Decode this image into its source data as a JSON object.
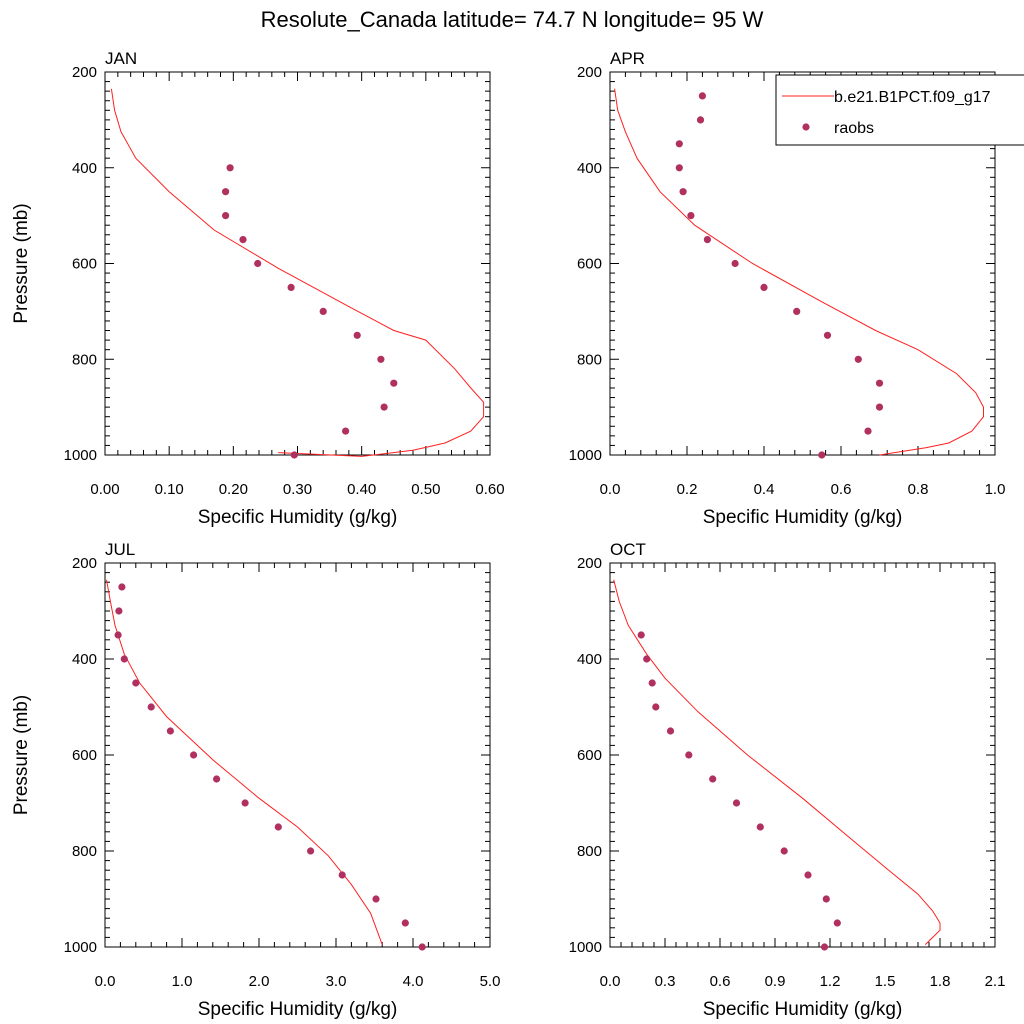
{
  "title": "Resolute_Canada  latitude= 74.7 N longitude= 95 W",
  "legend": {
    "model_label": "b.e21.B1PCT.f09_g17",
    "obs_label": "raobs"
  },
  "colors": {
    "model": "#ff2020",
    "obs": "#b03060"
  },
  "chart_data": [
    {
      "type": "line+scatter",
      "panel": "JAN",
      "xlabel": "Specific Humidity (g/kg)",
      "ylabel": "Pressure (mb)",
      "xlim": [
        0.0,
        0.6
      ],
      "ylim": [
        200,
        1000
      ],
      "y_reversed": true,
      "xticks": [
        "0.00",
        "0.10",
        "0.20",
        "0.30",
        "0.40",
        "0.50",
        "0.60"
      ],
      "yticks": [
        "200",
        "400",
        "600",
        "800",
        "1000"
      ],
      "series": [
        {
          "name": "b.e21.B1PCT.f09_g17",
          "kind": "line",
          "points": [
            [
              0.01,
              235
            ],
            [
              0.015,
              280
            ],
            [
              0.025,
              325
            ],
            [
              0.048,
              380
            ],
            [
              0.1,
              450
            ],
            [
              0.17,
              530
            ],
            [
              0.27,
              610
            ],
            [
              0.38,
              690
            ],
            [
              0.45,
              740
            ],
            [
              0.5,
              760
            ],
            [
              0.545,
              820
            ],
            [
              0.57,
              860
            ],
            [
              0.59,
              890
            ],
            [
              0.59,
              920
            ],
            [
              0.57,
              950
            ],
            [
              0.53,
              975
            ],
            [
              0.48,
              990
            ],
            [
              0.4,
              1003
            ],
            [
              0.27,
              995
            ]
          ]
        },
        {
          "name": "raobs",
          "kind": "scatter",
          "points": [
            [
              0.195,
              400
            ],
            [
              0.188,
              450
            ],
            [
              0.188,
              500
            ],
            [
              0.215,
              550
            ],
            [
              0.238,
              600
            ],
            [
              0.29,
              650
            ],
            [
              0.34,
              700
            ],
            [
              0.393,
              750
            ],
            [
              0.43,
              800
            ],
            [
              0.45,
              850
            ],
            [
              0.435,
              900
            ],
            [
              0.375,
              950
            ],
            [
              0.295,
              1000
            ]
          ]
        }
      ]
    },
    {
      "type": "line+scatter",
      "panel": "APR",
      "xlabel": "Specific Humidity (g/kg)",
      "ylabel": "",
      "xlim": [
        0.0,
        1.0
      ],
      "ylim": [
        200,
        1000
      ],
      "y_reversed": true,
      "xticks": [
        "0.0",
        "0.2",
        "0.4",
        "0.6",
        "0.8",
        "1.0"
      ],
      "yticks": [
        "200",
        "400",
        "600",
        "800",
        "1000"
      ],
      "series": [
        {
          "name": "b.e21.B1PCT.f09_g17",
          "kind": "line",
          "points": [
            [
              0.012,
              235
            ],
            [
              0.02,
              280
            ],
            [
              0.04,
              325
            ],
            [
              0.07,
              380
            ],
            [
              0.13,
              450
            ],
            [
              0.22,
              520
            ],
            [
              0.37,
              600
            ],
            [
              0.55,
              680
            ],
            [
              0.69,
              740
            ],
            [
              0.8,
              780
            ],
            [
              0.9,
              830
            ],
            [
              0.95,
              870
            ],
            [
              0.97,
              900
            ],
            [
              0.97,
              920
            ],
            [
              0.94,
              950
            ],
            [
              0.88,
              975
            ],
            [
              0.82,
              985
            ],
            [
              0.7,
              1000
            ]
          ]
        },
        {
          "name": "raobs",
          "kind": "scatter",
          "points": [
            [
              0.24,
              250
            ],
            [
              0.235,
              300
            ],
            [
              0.18,
              350
            ],
            [
              0.18,
              400
            ],
            [
              0.19,
              450
            ],
            [
              0.21,
              500
            ],
            [
              0.253,
              550
            ],
            [
              0.325,
              600
            ],
            [
              0.4,
              650
            ],
            [
              0.485,
              700
            ],
            [
              0.565,
              750
            ],
            [
              0.645,
              800
            ],
            [
              0.7,
              850
            ],
            [
              0.7,
              900
            ],
            [
              0.67,
              950
            ],
            [
              0.55,
              1000
            ]
          ]
        }
      ]
    },
    {
      "type": "line+scatter",
      "panel": "JUL",
      "xlabel": "Specific Humidity (g/kg)",
      "ylabel": "Pressure (mb)",
      "xlim": [
        0.0,
        5.0
      ],
      "ylim": [
        200,
        1000
      ],
      "y_reversed": true,
      "xticks": [
        "0.0",
        "1.0",
        "2.0",
        "3.0",
        "4.0",
        "5.0"
      ],
      "yticks": [
        "200",
        "400",
        "600",
        "800",
        "1000"
      ],
      "series": [
        {
          "name": "b.e21.B1PCT.f09_g17",
          "kind": "line",
          "points": [
            [
              0.02,
              235
            ],
            [
              0.07,
              280
            ],
            [
              0.13,
              330
            ],
            [
              0.25,
              390
            ],
            [
              0.45,
              450
            ],
            [
              0.8,
              520
            ],
            [
              1.4,
              610
            ],
            [
              2.0,
              690
            ],
            [
              2.5,
              750
            ],
            [
              2.9,
              810
            ],
            [
              3.2,
              870
            ],
            [
              3.45,
              930
            ],
            [
              3.6,
              995
            ]
          ]
        },
        {
          "name": "raobs",
          "kind": "scatter",
          "points": [
            [
              0.22,
              250
            ],
            [
              0.18,
              300
            ],
            [
              0.17,
              350
            ],
            [
              0.25,
              400
            ],
            [
              0.4,
              450
            ],
            [
              0.6,
              500
            ],
            [
              0.85,
              550
            ],
            [
              1.15,
              600
            ],
            [
              1.45,
              650
            ],
            [
              1.82,
              700
            ],
            [
              2.25,
              750
            ],
            [
              2.67,
              800
            ],
            [
              3.08,
              850
            ],
            [
              3.52,
              900
            ],
            [
              3.9,
              950
            ],
            [
              4.12,
              1000
            ]
          ]
        }
      ]
    },
    {
      "type": "line+scatter",
      "panel": "OCT",
      "xlabel": "Specific Humidity (g/kg)",
      "ylabel": "",
      "xlim": [
        0.0,
        2.1
      ],
      "ylim": [
        200,
        1000
      ],
      "y_reversed": true,
      "xticks": [
        "0.0",
        "0.3",
        "0.6",
        "0.9",
        "1.2",
        "1.5",
        "1.8",
        "2.1"
      ],
      "yticks": [
        "200",
        "400",
        "600",
        "800",
        "1000"
      ],
      "series": [
        {
          "name": "b.e21.B1PCT.f09_g17",
          "kind": "line",
          "points": [
            [
              0.02,
              235
            ],
            [
              0.05,
              280
            ],
            [
              0.1,
              330
            ],
            [
              0.2,
              390
            ],
            [
              0.3,
              440
            ],
            [
              0.48,
              510
            ],
            [
              0.75,
              600
            ],
            [
              1.05,
              690
            ],
            [
              1.3,
              770
            ],
            [
              1.52,
              840
            ],
            [
              1.68,
              890
            ],
            [
              1.76,
              925
            ],
            [
              1.8,
              950
            ],
            [
              1.8,
              965
            ],
            [
              1.76,
              980
            ],
            [
              1.72,
              995
            ]
          ]
        },
        {
          "name": "raobs",
          "kind": "scatter",
          "points": [
            [
              0.17,
              350
            ],
            [
              0.2,
              400
            ],
            [
              0.23,
              450
            ],
            [
              0.25,
              500
            ],
            [
              0.33,
              550
            ],
            [
              0.43,
              600
            ],
            [
              0.56,
              650
            ],
            [
              0.69,
              700
            ],
            [
              0.82,
              750
            ],
            [
              0.95,
              800
            ],
            [
              1.08,
              850
            ],
            [
              1.18,
              900
            ],
            [
              1.24,
              950
            ],
            [
              1.17,
              1000
            ]
          ]
        }
      ]
    }
  ]
}
